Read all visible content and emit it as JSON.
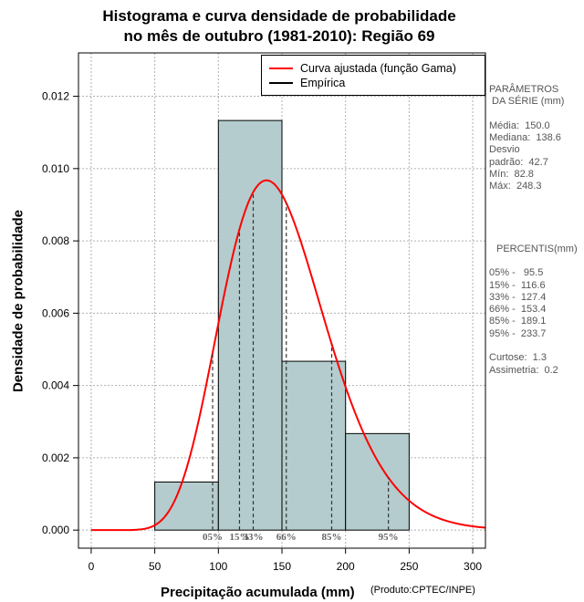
{
  "title_line1": "Histograma e curva densidade de probabilidade",
  "title_line2": "no mês de outubro (1981-2010): Região 69",
  "credit": "(Produto:CPTEC/INPE)",
  "legend": [
    {
      "label": "Curva ajustada (função Gama)",
      "color": "#ff0000"
    },
    {
      "label": "Empírica",
      "color": "#000000"
    }
  ],
  "stats": {
    "heading1": "PARÂMETROS",
    "heading2": "DA SÉRIE (mm)",
    "rows": [
      "Média:  150.0",
      "Mediana:  138.6",
      "Desvio",
      "padrão:  42.7",
      "Mín:  82.8",
      "Máx:  248.3"
    ]
  },
  "percentiles_block": {
    "heading": "PERCENTIS(mm)",
    "rows": [
      "05% -   95.5",
      "15% -  116.6",
      "33% -  127.4",
      "66% -  153.4",
      "85% -  189.1",
      "95% -  233.7"
    ],
    "kurtosis": "Curtose:  1.3",
    "skewness": "Assimetria:  0.2"
  },
  "chart_data": {
    "type": "bar",
    "title": "Histograma e curva densidade de probabilidade no mês de outubro (1981-2010): Região 69",
    "xlabel": "Precipitação acumulada (mm)",
    "ylabel": "Densidade de probabilidade",
    "xlim": [
      -10,
      310
    ],
    "ylim": [
      -0.0005,
      0.0132
    ],
    "x_ticks": [
      0,
      50,
      100,
      150,
      200,
      250,
      300
    ],
    "y_ticks": [
      0.0,
      0.002,
      0.004,
      0.006,
      0.008,
      0.01,
      0.012
    ],
    "y_tick_labels": [
      "0.000",
      "0.002",
      "0.004",
      "0.006",
      "0.008",
      "0.010",
      "0.012"
    ],
    "grid": true,
    "bar_color": "#b4cccd",
    "bins": [
      {
        "x0": 50,
        "x1": 100,
        "density": 0.00133
      },
      {
        "x0": 100,
        "x1": 150,
        "density": 0.01133
      },
      {
        "x0": 150,
        "x1": 200,
        "density": 0.00467
      },
      {
        "x0": 200,
        "x1": 250,
        "density": 0.00267
      }
    ],
    "gamma_curve": {
      "name": "Curva ajustada (função Gama)",
      "mean": 150.0,
      "sd": 42.7,
      "color": "#ff0000",
      "x_range": [
        0,
        310
      ]
    },
    "percentiles": [
      {
        "label": "05%",
        "value": 95.5
      },
      {
        "label": "15%",
        "value": 116.6
      },
      {
        "label": "33%",
        "value": 127.4
      },
      {
        "label": "66%",
        "value": 153.4
      },
      {
        "label": "85%",
        "value": 189.1
      },
      {
        "label": "95%",
        "value": 233.7
      }
    ]
  }
}
